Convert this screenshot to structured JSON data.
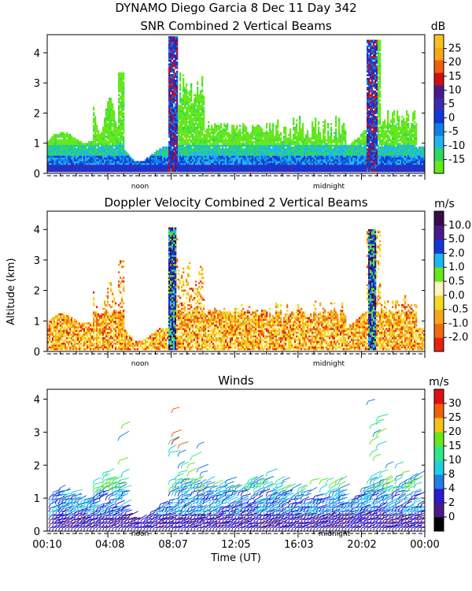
{
  "figure": {
    "title_line1": "DYNAMO Diego Garcia    8 Dec 11 Day 342",
    "ylabel": "Altitude (km)",
    "xlabel": "Time (UT)",
    "time_ticks": [
      "00:10",
      "04:08",
      "08:07",
      "12:05",
      "16:03",
      "20:02",
      "00:00"
    ],
    "noon_label": "noon",
    "midnight_label": "midnight"
  },
  "chart_data": [
    {
      "type": "heatmap",
      "title": "SNR Combined 2 Vertical Beams",
      "ylabel": "Altitude (km)",
      "ylim": [
        0,
        4.6
      ],
      "yticks": [
        "0",
        "1",
        "2",
        "3",
        "4"
      ],
      "x_time_range_hours": [
        0.17,
        24.0
      ],
      "colorbar": {
        "unit": "dB",
        "labels": [
          "-15",
          "-10",
          "-5",
          "0",
          "5",
          "10",
          "15",
          "20",
          "25"
        ],
        "colors": [
          "#66e81a",
          "#2ed85c",
          "#1fb6f0",
          "#0f7fe6",
          "#1038d8",
          "#3a2ab8",
          "#4a1a8c",
          "#d01010",
          "#f06010",
          "#f4a81a",
          "#f7c21e"
        ]
      },
      "features": [
        "Convective towers near 08:00 UT and 21:00 UT reaching ~4.5 km",
        "Strong returns (>0 dB) below ~0.5 km throughout"
      ]
    },
    {
      "type": "heatmap",
      "title": "Doppler Velocity Combined 2 Vertical Beams",
      "ylabel": "Altitude (km)",
      "ylim": [
        0,
        4.6
      ],
      "yticks": [
        "0",
        "1",
        "2",
        "3",
        "4"
      ],
      "x_time_range_hours": [
        0.17,
        24.0
      ],
      "colorbar": {
        "unit": "m/s",
        "labels": [
          "-2.0",
          "-1.0",
          "-0.5",
          "0.0",
          "0.5",
          "1.0",
          "2.0",
          "5.0",
          "10.0"
        ],
        "colors": [
          "#e82010",
          "#f06a10",
          "#f4a81a",
          "#f6d820",
          "#fdf6c0",
          "#66e81a",
          "#1fb6f0",
          "#1038d8",
          "#4a1a8c",
          "#3a0a4a"
        ]
      },
      "features": [
        "Mostly small downward/near-zero velocities below 1.5 km",
        "Upward velocities (5-10 m/s) in convective columns near 08:00 and 21:00 UT"
      ]
    },
    {
      "type": "scatter",
      "subtype": "wind-barbs",
      "title": "Winds",
      "ylabel": "Altitude (km)",
      "xlabel": "Time (UT)",
      "ylim": [
        0,
        4.3
      ],
      "yticks": [
        "0",
        "1",
        "2",
        "3",
        "4"
      ],
      "x_time_range_hours": [
        0.17,
        24.0
      ],
      "colorbar": {
        "unit": "m/s",
        "labels": [
          "0",
          "2",
          "4",
          "8",
          "10",
          "15",
          "20",
          "25",
          "30"
        ],
        "colors": [
          "#000000",
          "#4a1a8c",
          "#2a1ad0",
          "#1f7fe6",
          "#1fd0e0",
          "#2ee88a",
          "#66e81a",
          "#f4c21a",
          "#f06010",
          "#e01010"
        ]
      },
      "features": [
        "Winds mostly 2-10 m/s below 1.5 km",
        "Stronger 15-25 m/s winds aloft near 08:00 UT"
      ]
    }
  ]
}
